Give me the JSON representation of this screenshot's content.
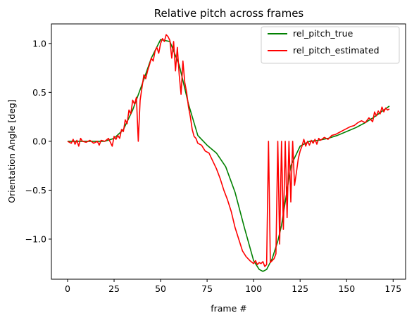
{
  "chart_data": {
    "type": "line",
    "title": "Relative pitch across frames",
    "xlabel": "frame #",
    "ylabel": "Orientation Angle [deg]",
    "xlim": [
      -8.7,
      181.7
    ],
    "ylim": [
      -1.41,
      1.2
    ],
    "xticks": [
      0,
      25,
      50,
      75,
      100,
      125,
      150,
      175
    ],
    "yticks": [
      -1.0,
      -0.5,
      0.0,
      0.5,
      1.0
    ],
    "xtick_labels": [
      "0",
      "25",
      "50",
      "75",
      "100",
      "125",
      "150",
      "175"
    ],
    "ytick_labels": [
      "−1.0",
      "−0.5",
      "0.0",
      "0.5",
      "1.0"
    ],
    "grid": false,
    "legend_position": "upper right",
    "series": [
      {
        "name": "rel_pitch_true",
        "color": "#008000",
        "x": [
          0,
          5,
          10,
          15,
          20,
          25,
          30,
          35,
          40,
          45,
          50,
          55,
          60,
          65,
          70,
          75,
          80,
          85,
          90,
          95,
          100,
          103,
          105,
          107,
          110,
          113,
          115,
          118,
          120,
          125,
          130,
          135,
          140,
          145,
          150,
          155,
          160,
          165,
          170,
          173
        ],
        "y": [
          0.0,
          0.0,
          0.0,
          0.0,
          0.0,
          0.03,
          0.12,
          0.32,
          0.58,
          0.85,
          1.04,
          1.02,
          0.78,
          0.38,
          0.06,
          -0.04,
          -0.12,
          -0.26,
          -0.52,
          -0.88,
          -1.22,
          -1.31,
          -1.33,
          -1.31,
          -1.2,
          -1.02,
          -0.86,
          -0.5,
          -0.25,
          -0.05,
          0.0,
          0.01,
          0.03,
          0.06,
          0.1,
          0.14,
          0.19,
          0.25,
          0.32,
          0.36
        ]
      },
      {
        "name": "rel_pitch_estimated",
        "color": "#ff0000",
        "x": [
          0,
          2,
          3,
          4,
          5,
          6,
          7,
          8,
          10,
          12,
          14,
          16,
          17,
          18,
          20,
          22,
          24,
          25,
          26,
          27,
          28,
          29,
          30,
          31,
          32,
          33,
          34,
          35,
          36,
          37,
          38,
          39,
          40,
          41,
          42,
          43,
          44,
          45,
          46,
          47,
          48,
          49,
          50,
          51,
          52,
          53,
          54,
          55,
          56,
          57,
          58,
          59,
          60,
          61,
          62,
          63,
          64,
          65,
          66,
          67,
          68,
          69,
          70,
          72,
          74,
          76,
          78,
          80,
          82,
          84,
          86,
          88,
          90,
          92,
          94,
          96,
          98,
          100,
          101,
          102,
          103,
          104,
          105,
          106,
          107,
          108,
          109,
          110,
          111,
          112,
          113,
          114,
          115,
          116,
          117,
          118,
          119,
          120,
          121,
          122,
          123,
          124,
          125,
          126,
          127,
          128,
          129,
          130,
          131,
          132,
          133,
          134,
          135,
          136,
          138,
          140,
          142,
          144,
          146,
          148,
          150,
          152,
          154,
          156,
          158,
          160,
          162,
          164,
          165,
          166,
          167,
          168,
          169,
          170,
          171,
          172,
          173
        ],
        "y": [
          0.0,
          -0.02,
          0.02,
          -0.03,
          0.01,
          -0.05,
          0.03,
          0.0,
          -0.01,
          0.01,
          -0.02,
          0.0,
          -0.04,
          0.01,
          0.0,
          0.03,
          -0.05,
          0.05,
          0.02,
          0.06,
          0.03,
          0.12,
          0.1,
          0.22,
          0.18,
          0.32,
          0.28,
          0.42,
          0.38,
          0.45,
          0.0,
          0.42,
          0.55,
          0.68,
          0.64,
          0.72,
          0.78,
          0.85,
          0.82,
          0.92,
          0.96,
          0.9,
          1.0,
          1.05,
          1.02,
          1.09,
          1.07,
          1.03,
          0.85,
          1.02,
          0.72,
          0.96,
          0.68,
          0.48,
          0.82,
          0.6,
          0.5,
          0.35,
          0.25,
          0.12,
          0.05,
          0.03,
          -0.02,
          -0.04,
          -0.1,
          -0.12,
          -0.2,
          -0.28,
          -0.38,
          -0.5,
          -0.6,
          -0.72,
          -0.88,
          -1.0,
          -1.12,
          -1.18,
          -1.22,
          -1.25,
          -1.22,
          -1.26,
          -1.24,
          -1.25,
          -1.23,
          -1.28,
          -1.26,
          0.0,
          -1.24,
          -1.22,
          -1.2,
          -1.15,
          0.0,
          -1.05,
          0.0,
          -0.9,
          0.0,
          -0.78,
          0.0,
          -0.62,
          0.0,
          -0.45,
          -0.32,
          -0.18,
          -0.1,
          -0.05,
          0.02,
          -0.05,
          0.0,
          -0.04,
          0.01,
          -0.02,
          0.02,
          -0.03,
          0.03,
          0.01,
          0.04,
          0.02,
          0.06,
          0.07,
          0.09,
          0.11,
          0.13,
          0.15,
          0.16,
          0.19,
          0.21,
          0.19,
          0.24,
          0.2,
          0.3,
          0.26,
          0.31,
          0.28,
          0.35,
          0.3,
          0.34,
          0.32,
          0.33
        ]
      }
    ]
  }
}
